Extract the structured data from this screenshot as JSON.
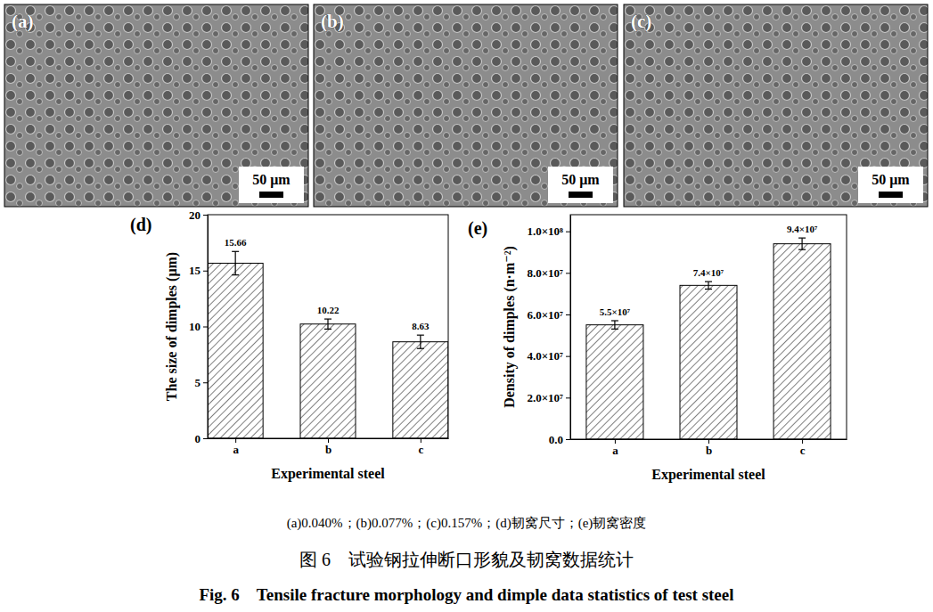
{
  "chart_data": [
    {
      "type": "bar",
      "panel_label": "(d)",
      "x_label": "Experimental steel",
      "y_label": "The size of dimples (μm)",
      "categories": [
        "a",
        "b",
        "c"
      ],
      "values": [
        15.66,
        10.22,
        8.63
      ],
      "errors": [
        1.05,
        0.45,
        0.6
      ],
      "color": "#000000",
      "data_labels": true,
      "ylim": [
        0,
        20
      ],
      "yticks": [
        0,
        5,
        10,
        15,
        20
      ]
    },
    {
      "type": "bar",
      "panel_label": "(e)",
      "x_label": "Experimental steel",
      "y_label": "Density of dimples (n·m⁻²)",
      "categories": [
        "a",
        "b",
        "c"
      ],
      "values": [
        55000000,
        74000000,
        94000000
      ],
      "value_labels": [
        "5.5×10⁷",
        "7.4×10⁷",
        "9.4×10⁷"
      ],
      "errors": [
        2000000,
        1800000,
        2800000
      ],
      "color": "#000000",
      "data_labels": true,
      "ylim": [
        0,
        108000000
      ],
      "yticks": [
        {
          "value": 0,
          "label": "0.0"
        },
        {
          "value": 20000000,
          "label": "2.0×10⁷"
        },
        {
          "value": 40000000,
          "label": "4.0×10⁷"
        },
        {
          "value": 60000000,
          "label": "6.0×10⁷"
        },
        {
          "value": 80000000,
          "label": "8.0×10⁷"
        },
        {
          "value": 100000000,
          "label": "1.0×10⁸"
        }
      ]
    }
  ],
  "images": [
    {
      "label": "(a)",
      "scale_bar": "50 μm"
    },
    {
      "label": "(b)",
      "scale_bar": "50 μm"
    },
    {
      "label": "(c)",
      "scale_bar": "50 μm"
    }
  ],
  "caption": {
    "subfigures": "(a)0.040%；(b)0.077%；(c)0.157%；(d)韧窝尺寸；(e)韧窝密度",
    "title_zh": "图 6　试验钢拉伸断口形貌及韧窝数据统计",
    "title_en": "Fig. 6　Tensile fracture morphology and dimple data statistics of test steel"
  }
}
